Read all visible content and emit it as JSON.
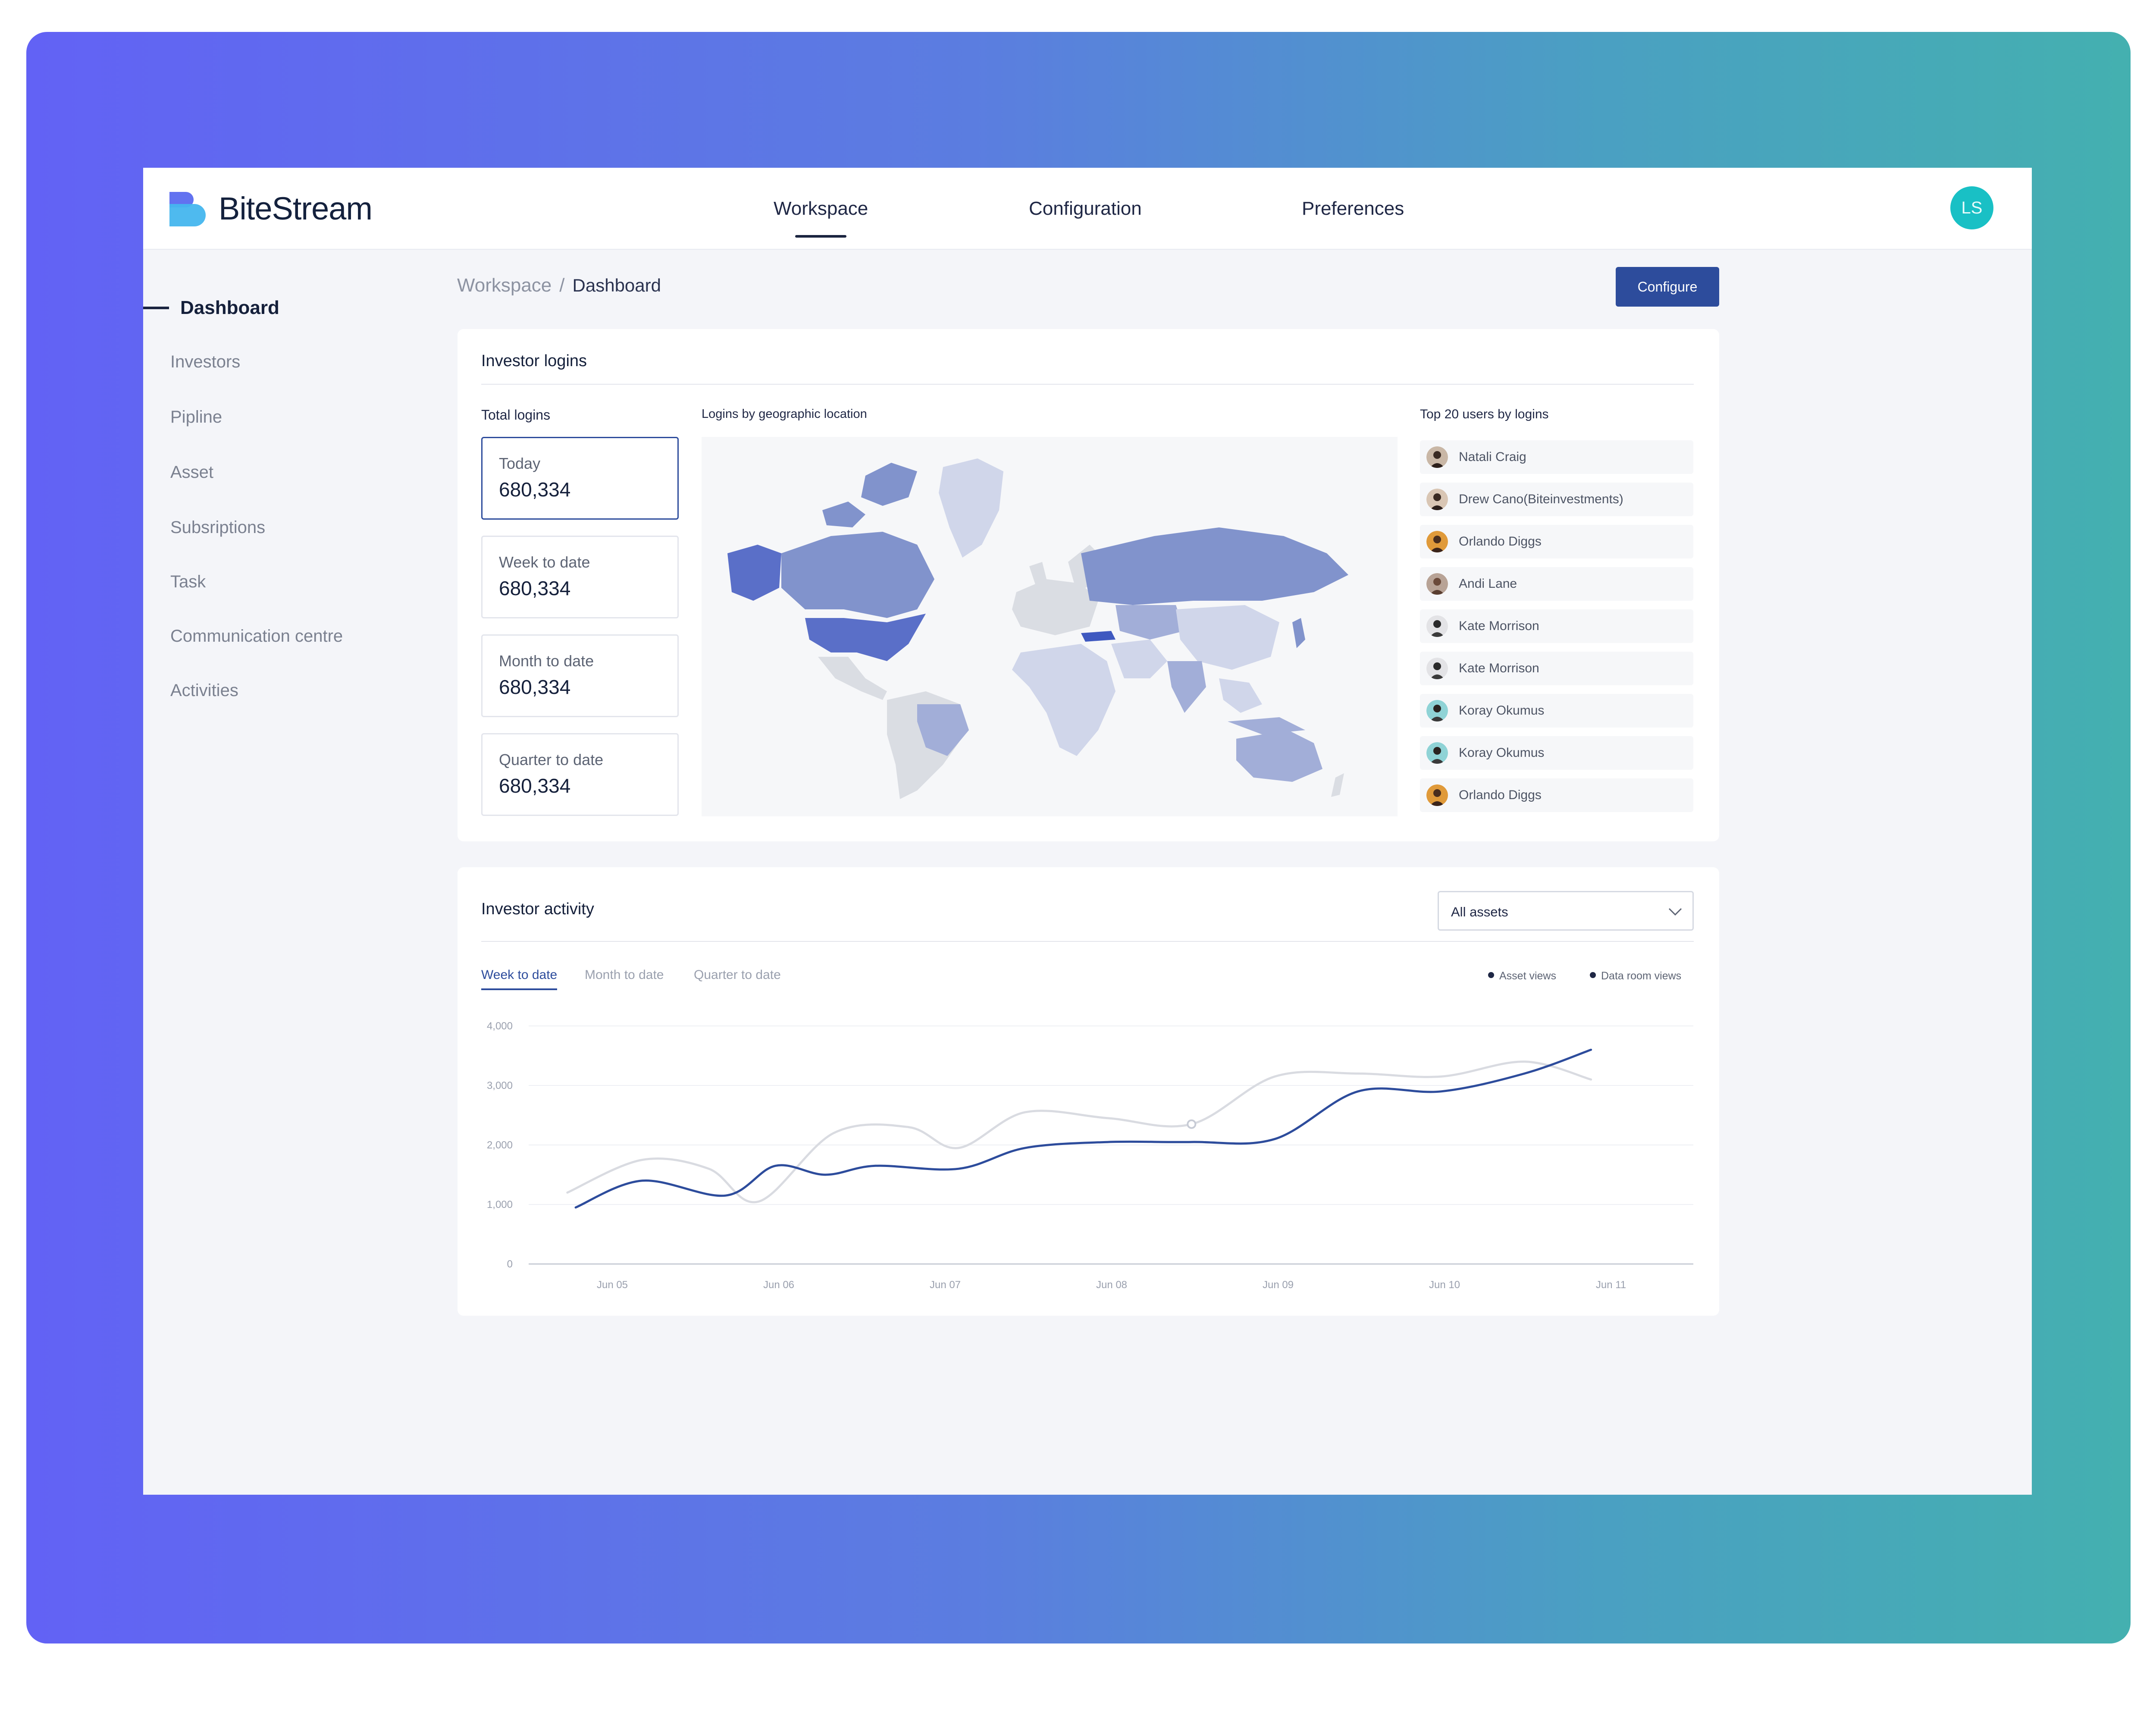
{
  "app": {
    "brand": "BiteStream",
    "user_initials": "LS"
  },
  "top_nav": {
    "tabs": [
      {
        "label": "Workspace",
        "active": true
      },
      {
        "label": "Configuration",
        "active": false
      },
      {
        "label": "Preferences",
        "active": false
      }
    ]
  },
  "sidebar": {
    "items": [
      {
        "label": "Dashboard",
        "active": true
      },
      {
        "label": "Investors"
      },
      {
        "label": "Pipline"
      },
      {
        "label": "Asset"
      },
      {
        "label": "Subsriptions"
      },
      {
        "label": "Task"
      },
      {
        "label": "Communication centre"
      },
      {
        "label": "Activities"
      }
    ]
  },
  "breadcrumb": {
    "root": "Workspace",
    "separator": "/",
    "current": "Dashboard"
  },
  "actions": {
    "configure_label": "Configure"
  },
  "investor_logins": {
    "title": "Investor logins",
    "total_label": "Total logins",
    "map_label": "Logins by geographic location",
    "top_users_label": "Top 20 users by logins",
    "stats": [
      {
        "label": "Today",
        "value": "680,334",
        "selected": true
      },
      {
        "label": "Week to date",
        "value": "680,334"
      },
      {
        "label": "Month to date",
        "value": "680,334"
      },
      {
        "label": "Quarter to date",
        "value": "680,334"
      }
    ],
    "users": [
      {
        "name": "Natali Craig"
      },
      {
        "name": "Drew Cano(Biteinvestments)"
      },
      {
        "name": "Orlando Diggs"
      },
      {
        "name": "Andi Lane"
      },
      {
        "name": "Kate Morrison"
      },
      {
        "name": "Kate Morrison"
      },
      {
        "name": "Koray Okumus"
      },
      {
        "name": "Koray Okumus"
      },
      {
        "name": "Orlando Diggs"
      }
    ]
  },
  "investor_activity": {
    "title": "Investor activity",
    "filter_value": "All assets",
    "range_tabs": [
      {
        "label": "Week to date",
        "active": true
      },
      {
        "label": "Month to date"
      },
      {
        "label": "Quarter to date"
      }
    ]
  },
  "colors": {
    "accent": "#2d4c9c",
    "avatar_bg": "#19c0c5",
    "series_asset_views": "#2d4c9c",
    "series_data_room_views": "#d9dbe1"
  },
  "chart_data": {
    "type": "line",
    "x": [
      "Jun 05",
      "Jun 06",
      "Jun 07",
      "Jun 08",
      "Jun 09",
      "Jun 10",
      "Jun 11"
    ],
    "y_ticks": [
      "4,000",
      "3,000",
      "2,000",
      "1,000",
      "0"
    ],
    "ylim": [
      0,
      4000
    ],
    "grid": true,
    "legend_position": "top-right",
    "series": [
      {
        "name": "Asset views",
        "points": [
          [
            4.78,
            950
          ],
          [
            5.18,
            1400
          ],
          [
            5.68,
            1150
          ],
          [
            5.98,
            1650
          ],
          [
            6.28,
            1500
          ],
          [
            6.58,
            1650
          ],
          [
            7.08,
            1600
          ],
          [
            7.48,
            1950
          ],
          [
            7.98,
            2050
          ],
          [
            8.48,
            2050
          ],
          [
            8.98,
            2100
          ],
          [
            9.48,
            2900
          ],
          [
            9.98,
            2900
          ],
          [
            10.48,
            3200
          ],
          [
            10.88,
            3600
          ]
        ]
      },
      {
        "name": "Data room views",
        "points": [
          [
            4.73,
            1200
          ],
          [
            5.18,
            1750
          ],
          [
            5.58,
            1600
          ],
          [
            5.88,
            1050
          ],
          [
            6.33,
            2200
          ],
          [
            6.78,
            2300
          ],
          [
            7.08,
            1950
          ],
          [
            7.48,
            2550
          ],
          [
            7.98,
            2450
          ],
          [
            8.48,
            2350
          ],
          [
            8.98,
            3150
          ],
          [
            9.48,
            3200
          ],
          [
            9.98,
            3150
          ],
          [
            10.48,
            3400
          ],
          [
            10.88,
            3100
          ]
        ]
      }
    ]
  }
}
